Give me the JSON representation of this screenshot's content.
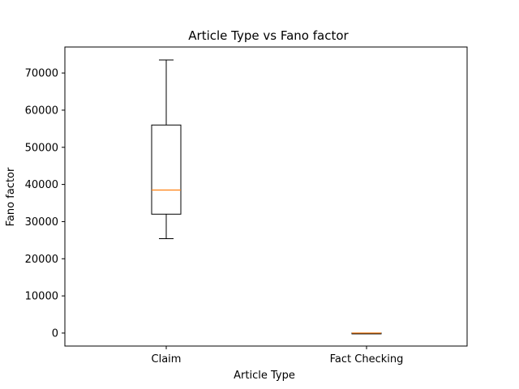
{
  "chart_data": {
    "type": "box",
    "title": "Article Type vs Fano factor",
    "xlabel": "Article Type",
    "ylabel": "Fano factor",
    "ylim": [
      -3500,
      77000
    ],
    "yticks": [
      0,
      10000,
      20000,
      30000,
      40000,
      50000,
      60000,
      70000
    ],
    "categories": [
      "Claim",
      "Fact Checking"
    ],
    "boxes": [
      {
        "category": "Claim",
        "whisker_low": 25400,
        "q1": 32000,
        "median": 38500,
        "q3": 56000,
        "whisker_high": 73500
      },
      {
        "category": "Fact Checking",
        "whisker_low": 0,
        "q1": 0,
        "median": 0,
        "q3": 0,
        "whisker_high": 0
      }
    ],
    "grid": false,
    "legend": "none",
    "colors": {
      "box": "#000000",
      "median": "#ff7f0e",
      "axes": "#000000"
    }
  }
}
